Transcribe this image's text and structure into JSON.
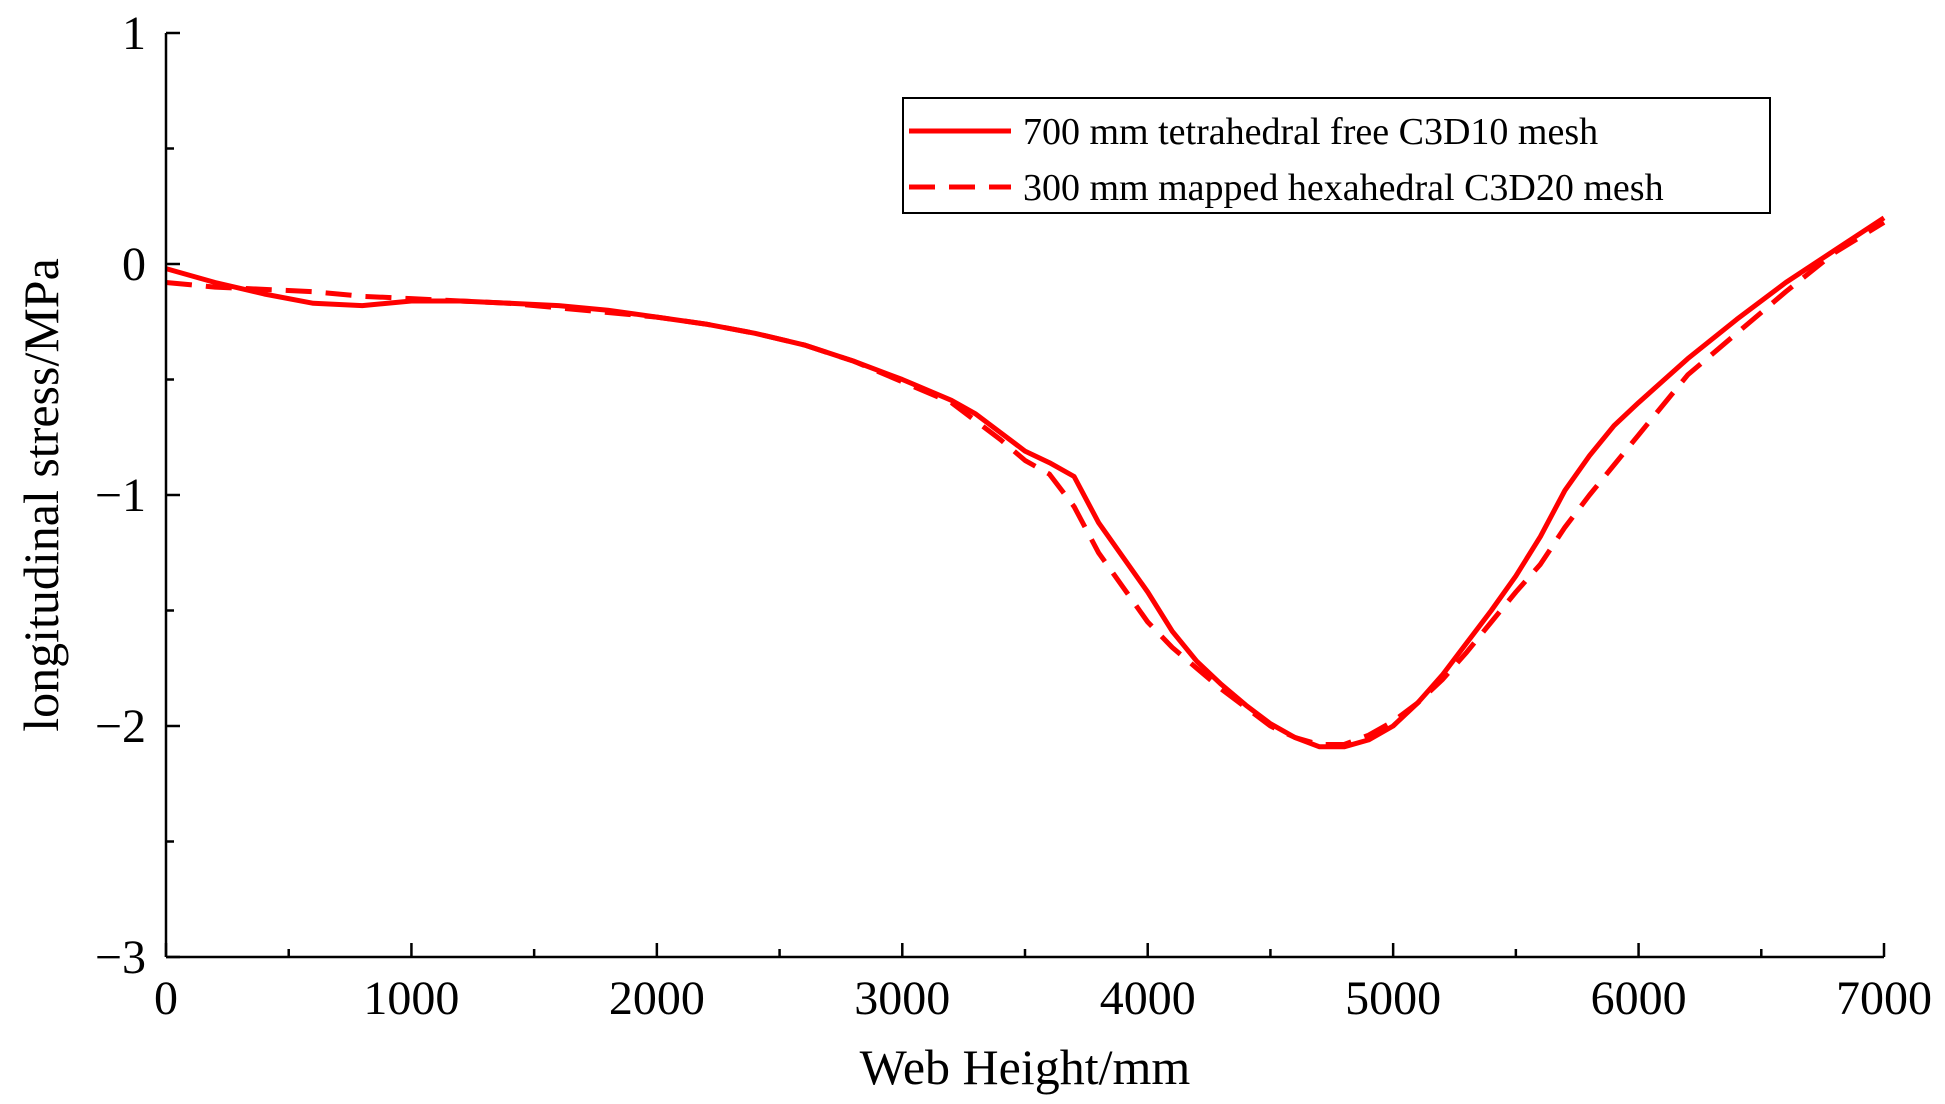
{
  "chart_data": {
    "type": "line",
    "xlabel": "Web Height/mm",
    "ylabel": "longitudinal stress/MPa",
    "xlim": [
      0,
      7000
    ],
    "ylim": [
      -3,
      1
    ],
    "x_major_ticks": [
      0,
      1000,
      2000,
      3000,
      4000,
      5000,
      6000,
      7000
    ],
    "x_tick_labels": [
      "0",
      "1000",
      "2000",
      "3000",
      "4000",
      "5000",
      "6000",
      "7000"
    ],
    "x_minor_ticks": [
      500,
      1500,
      2500,
      3500,
      4500,
      5500,
      6500
    ],
    "y_major_ticks": [
      1,
      0,
      -1,
      -2,
      -3
    ],
    "y_tick_labels": [
      "1",
      "0",
      "−1",
      "−2",
      "−3"
    ],
    "y_minor_ticks": [
      0.5,
      -0.5,
      -1.5,
      -2.5
    ],
    "grid": false,
    "legend_position": "top-right",
    "series": [
      {
        "name": "700 mm tetrahedral free C3D10 mesh",
        "style": "solid",
        "color": "#ff0000",
        "x": [
          0,
          200,
          400,
          600,
          800,
          1000,
          1200,
          1400,
          1600,
          1800,
          2000,
          2200,
          2400,
          2600,
          2800,
          3000,
          3200,
          3300,
          3400,
          3500,
          3600,
          3700,
          3800,
          3900,
          4000,
          4100,
          4200,
          4300,
          4400,
          4500,
          4600,
          4700,
          4800,
          4900,
          5000,
          5100,
          5200,
          5300,
          5400,
          5500,
          5600,
          5700,
          5800,
          5900,
          6000,
          6200,
          6400,
          6600,
          6800,
          7000
        ],
        "y": [
          -0.02,
          -0.08,
          -0.13,
          -0.17,
          -0.18,
          -0.16,
          -0.16,
          -0.17,
          -0.18,
          -0.2,
          -0.23,
          -0.26,
          -0.3,
          -0.35,
          -0.42,
          -0.5,
          -0.59,
          -0.65,
          -0.73,
          -0.81,
          -0.86,
          -0.92,
          -1.12,
          -1.27,
          -1.42,
          -1.59,
          -1.72,
          -1.82,
          -1.91,
          -1.99,
          -2.05,
          -2.09,
          -2.09,
          -2.06,
          -2.0,
          -1.9,
          -1.78,
          -1.64,
          -1.5,
          -1.35,
          -1.18,
          -0.98,
          -0.83,
          -0.7,
          -0.6,
          -0.41,
          -0.24,
          -0.08,
          0.06,
          0.2
        ]
      },
      {
        "name": "300 mm mapped hexahedral C3D20 mesh",
        "style": "dashed",
        "color": "#ff0000",
        "x": [
          0,
          200,
          400,
          600,
          800,
          1000,
          1200,
          1400,
          1600,
          1800,
          2000,
          2200,
          2400,
          2600,
          2800,
          3000,
          3200,
          3300,
          3400,
          3500,
          3600,
          3700,
          3800,
          3900,
          4000,
          4100,
          4200,
          4300,
          4400,
          4500,
          4600,
          4700,
          4800,
          4900,
          5000,
          5100,
          5200,
          5300,
          5400,
          5500,
          5600,
          5700,
          5800,
          5900,
          6000,
          6200,
          6400,
          6600,
          6800,
          7000
        ],
        "y": [
          -0.08,
          -0.1,
          -0.11,
          -0.12,
          -0.14,
          -0.15,
          -0.16,
          -0.17,
          -0.19,
          -0.21,
          -0.23,
          -0.26,
          -0.3,
          -0.35,
          -0.42,
          -0.51,
          -0.6,
          -0.68,
          -0.76,
          -0.85,
          -0.91,
          -1.05,
          -1.25,
          -1.4,
          -1.55,
          -1.66,
          -1.75,
          -1.84,
          -1.92,
          -2.0,
          -2.05,
          -2.08,
          -2.08,
          -2.04,
          -1.98,
          -1.9,
          -1.8,
          -1.68,
          -1.55,
          -1.42,
          -1.3,
          -1.14,
          -1.0,
          -0.87,
          -0.74,
          -0.48,
          -0.3,
          -0.12,
          0.05,
          0.18
        ]
      }
    ]
  }
}
